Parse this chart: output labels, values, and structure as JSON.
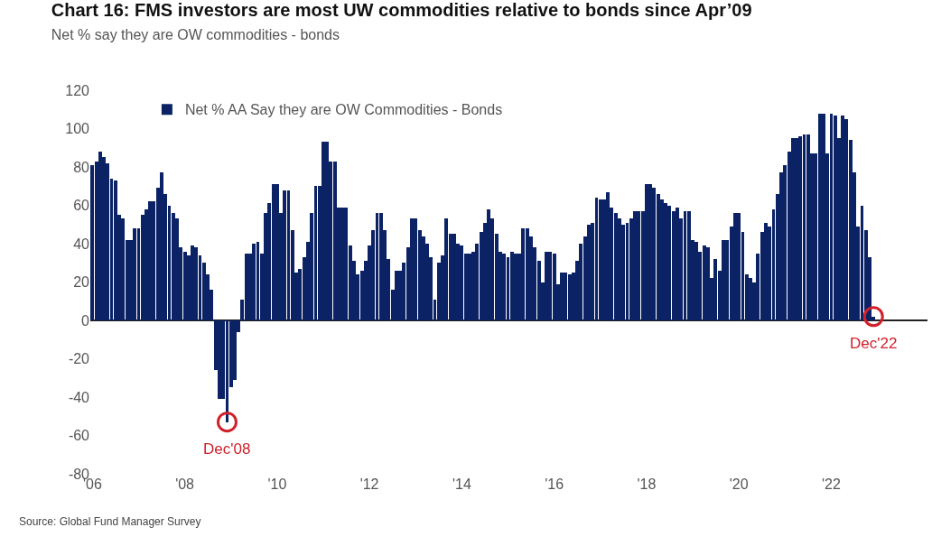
{
  "chart_data": {
    "type": "bar",
    "title": "Chart 16: FMS investors are most UW commodities relative to bonds since Apr’09",
    "subtitle": "Net % say they are OW commodities - bonds",
    "annotations": [
      {
        "text": "Dec'08",
        "x": "2008-12",
        "y": -53
      },
      {
        "text": "Dec'22",
        "x": "2022-12",
        "y": 2
      },
      "Source: Global Fund Manager Survey"
    ],
    "x": [
      "2006-01",
      "2006-02",
      "2006-03",
      "2006-04",
      "2006-05",
      "2006-06",
      "2006-07",
      "2006-08",
      "2006-09",
      "2006-10",
      "2006-11",
      "2006-12",
      "2007-01",
      "2007-02",
      "2007-03",
      "2007-04",
      "2007-05",
      "2007-06",
      "2007-07",
      "2007-08",
      "2007-09",
      "2007-10",
      "2007-11",
      "2007-12",
      "2008-01",
      "2008-02",
      "2008-03",
      "2008-04",
      "2008-05",
      "2008-06",
      "2008-07",
      "2008-08",
      "2008-09",
      "2008-10",
      "2008-11",
      "2008-12",
      "2009-01",
      "2009-02",
      "2009-03",
      "2009-04",
      "2009-05",
      "2009-06",
      "2009-07",
      "2009-08",
      "2009-09",
      "2009-10",
      "2009-11",
      "2009-12",
      "2010-01",
      "2010-02",
      "2010-03",
      "2010-04",
      "2010-05",
      "2010-06",
      "2010-07",
      "2010-08",
      "2010-09",
      "2010-10",
      "2010-11",
      "2010-12",
      "2011-01",
      "2011-02",
      "2011-03",
      "2011-04",
      "2011-05",
      "2011-06",
      "2011-07",
      "2011-08",
      "2011-09",
      "2011-10",
      "2011-11",
      "2011-12",
      "2012-01",
      "2012-02",
      "2012-03",
      "2012-04",
      "2012-05",
      "2012-06",
      "2012-07",
      "2012-08",
      "2012-09",
      "2012-10",
      "2012-11",
      "2012-12",
      "2013-01",
      "2013-02",
      "2013-03",
      "2013-04",
      "2013-05",
      "2013-06",
      "2013-07",
      "2013-08",
      "2013-09",
      "2013-10",
      "2013-11",
      "2013-12",
      "2014-01",
      "2014-02",
      "2014-03",
      "2014-04",
      "2014-05",
      "2014-06",
      "2014-07",
      "2014-08",
      "2014-09",
      "2014-10",
      "2014-11",
      "2014-12",
      "2015-01",
      "2015-02",
      "2015-03",
      "2015-04",
      "2015-05",
      "2015-06",
      "2015-07",
      "2015-08",
      "2015-09",
      "2015-10",
      "2015-11",
      "2015-12",
      "2016-01",
      "2016-02",
      "2016-03",
      "2016-04",
      "2016-05",
      "2016-06",
      "2016-07",
      "2016-08",
      "2016-09",
      "2016-10",
      "2016-11",
      "2016-12",
      "2017-01",
      "2017-02",
      "2017-03",
      "2017-04",
      "2017-05",
      "2017-06",
      "2017-07",
      "2017-08",
      "2017-09",
      "2017-10",
      "2017-11",
      "2017-12",
      "2018-01",
      "2018-02",
      "2018-03",
      "2018-04",
      "2018-05",
      "2018-06",
      "2018-07",
      "2018-08",
      "2018-09",
      "2018-10",
      "2018-11",
      "2018-12",
      "2019-01",
      "2019-02",
      "2019-03",
      "2019-04",
      "2019-05",
      "2019-06",
      "2019-07",
      "2019-08",
      "2019-09",
      "2019-10",
      "2019-11",
      "2019-12",
      "2020-01",
      "2020-02",
      "2020-03",
      "2020-04",
      "2020-05",
      "2020-06",
      "2020-07",
      "2020-08",
      "2020-09",
      "2020-10",
      "2020-11",
      "2020-12",
      "2021-01",
      "2021-02",
      "2021-03",
      "2021-04",
      "2021-05",
      "2021-06",
      "2021-07",
      "2021-08",
      "2021-09",
      "2021-10",
      "2021-11",
      "2021-12",
      "2022-01",
      "2022-02",
      "2022-03",
      "2022-04",
      "2022-05",
      "2022-06",
      "2022-07",
      "2022-08",
      "2022-09",
      "2022-10",
      "2022-11",
      "2022-12"
    ],
    "series": [
      {
        "name": "Net % AA Say they are OW Commodities - Bonds",
        "color": "#0b2265",
        "values": [
          81,
          83,
          88,
          85,
          82,
          74,
          73,
          55,
          53,
          42,
          42,
          48,
          48,
          55,
          58,
          62,
          62,
          69,
          77,
          66,
          60,
          56,
          53,
          38,
          36,
          34,
          39,
          38,
          34,
          30,
          24,
          16,
          -26,
          -41,
          -41,
          -53,
          -35,
          -31,
          -6,
          11,
          35,
          35,
          40,
          41,
          35,
          56,
          61,
          71,
          71,
          56,
          68,
          68,
          47,
          25,
          27,
          33,
          41,
          56,
          70,
          70,
          93,
          93,
          83,
          83,
          59,
          59,
          59,
          39,
          31,
          24,
          26,
          31,
          39,
          47,
          56,
          56,
          47,
          32,
          16,
          26,
          26,
          30,
          38,
          53,
          53,
          47,
          44,
          40,
          33,
          11,
          30,
          34,
          53,
          45,
          45,
          40,
          39,
          35,
          35,
          36,
          40,
          46,
          51,
          58,
          53,
          45,
          36,
          35,
          33,
          36,
          35,
          35,
          48,
          48,
          44,
          38,
          31,
          20,
          36,
          36,
          35,
          19,
          25,
          25,
          24,
          25,
          31,
          40,
          44,
          50,
          51,
          64,
          63,
          63,
          67,
          59,
          56,
          53,
          50,
          51,
          53,
          57,
          57,
          57,
          71,
          71,
          69,
          66,
          63,
          61,
          60,
          57,
          59,
          53,
          57,
          57,
          42,
          41,
          36,
          39,
          38,
          22,
          32,
          26,
          42,
          42,
          49,
          56,
          56,
          46,
          24,
          22,
          20,
          35,
          46,
          51,
          49,
          58,
          66,
          77,
          81,
          88,
          95,
          95,
          96,
          97,
          97,
          87,
          87,
          108,
          108,
          87,
          108,
          107,
          95,
          107,
          105,
          94,
          77,
          49,
          60,
          47,
          33,
          2
        ]
      }
    ],
    "xlim": [
      "2005-12-15",
      "2024-02-01"
    ],
    "xticks": [
      {
        "value": "2006-01-01",
        "label": "'06"
      },
      {
        "value": "2008-01-01",
        "label": "'08"
      },
      {
        "value": "2010-01-01",
        "label": "'10"
      },
      {
        "value": "2012-01-01",
        "label": "'12"
      },
      {
        "value": "2014-01-01",
        "label": "'14"
      },
      {
        "value": "2016-01-01",
        "label": "'16"
      },
      {
        "value": "2018-01-01",
        "label": "'18"
      },
      {
        "value": "2020-01-01",
        "label": "'20"
      },
      {
        "value": "2022-01-01",
        "label": "'22"
      }
    ],
    "ylim": [
      -80,
      120
    ],
    "yticks": [
      -80,
      -60,
      -40,
      -20,
      0,
      20,
      40,
      60,
      80,
      100,
      120
    ],
    "legend": "top left"
  }
}
